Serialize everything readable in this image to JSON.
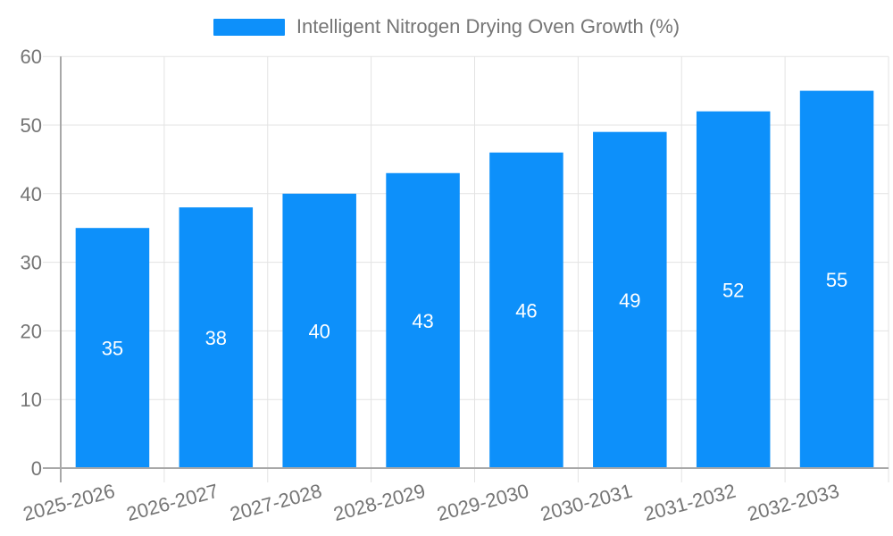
{
  "legend": {
    "label": "Intelligent Nitrogen Drying Oven Growth (%)"
  },
  "chart_data": {
    "type": "bar",
    "title": "Intelligent Nitrogen Drying Oven Growth (%)",
    "series_name": "Intelligent Nitrogen Drying Oven Growth (%)",
    "categories": [
      "2025-2026",
      "2026-2027",
      "2027-2028",
      "2028-2029",
      "2029-2030",
      "2030-2031",
      "2031-2032",
      "2032-2033"
    ],
    "values": [
      35,
      38,
      40,
      43,
      46,
      49,
      52,
      55
    ],
    "value_labels": [
      "35",
      "38",
      "40",
      "43",
      "46",
      "49",
      "52",
      "55"
    ],
    "xlabel": "",
    "ylabel": "",
    "ylim": [
      0,
      60
    ],
    "yticks": [
      0,
      10,
      20,
      30,
      40,
      50,
      60
    ],
    "grid": true,
    "legend_position": "top",
    "x_label_rotation_deg": -15,
    "colors": {
      "bar": "#0D90FA",
      "value_label": "#ffffff",
      "axis_text": "#757575",
      "gridline": "#e3e3e3",
      "axis_line": "#a8a8a8",
      "background": "#ffffff"
    }
  }
}
